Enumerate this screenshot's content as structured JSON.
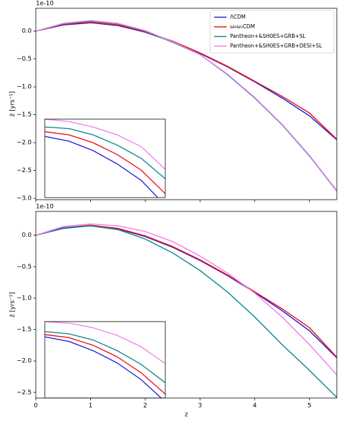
{
  "chart_data": [
    {
      "type": "line",
      "offset_label": "1e-10",
      "ylabel": "ż [yrs⁻¹]",
      "x": [
        0,
        0.5,
        1,
        1.5,
        2,
        2.5,
        3,
        3.5,
        4,
        4.5,
        5,
        5.5
      ],
      "xlim": [
        0,
        5.5
      ],
      "xticks": [
        0,
        1,
        2,
        3,
        4,
        5
      ],
      "xticklabels": false,
      "ylim": [
        -3.025,
        0.41
      ],
      "yticks": [
        {
          "value": 0,
          "label": "0.0"
        },
        {
          "value": -0.5,
          "label": "−0.5"
        },
        {
          "value": -1,
          "label": "−1.0"
        },
        {
          "value": -1.5,
          "label": "−1.5"
        },
        {
          "value": -2,
          "label": "−2.0"
        },
        {
          "value": -2.5,
          "label": "−2.5"
        },
        {
          "value": -3,
          "label": "−3.0"
        }
      ],
      "legend": "upper right",
      "series": [
        {
          "name": "ΛCDM",
          "color": "#2222dd",
          "values": [
            0,
            0.11,
            0.15,
            0.1,
            -0.02,
            -0.19,
            -0.4,
            -0.64,
            -0.91,
            -1.2,
            -1.52,
            -1.95
          ]
        },
        {
          "name": "ω₀ω₁CDM",
          "color": "#ee1111",
          "values": [
            0,
            0.12,
            0.16,
            0.11,
            -0.01,
            -0.18,
            -0.39,
            -0.63,
            -0.9,
            -1.17,
            -1.47,
            -1.94
          ]
        },
        {
          "name": "Pantheon+&SH0ES+GRB+SL",
          "color": "#138a8a",
          "values": [
            0,
            0.13,
            0.18,
            0.13,
            0,
            -0.2,
            -0.42,
            -0.78,
            -1.2,
            -1.68,
            -2.24,
            -2.87
          ]
        },
        {
          "name": "Pantheon+&SH0ES+GRB+DESI+SL",
          "color": "#ee82ee",
          "values": [
            0,
            0.14,
            0.19,
            0.14,
            0.01,
            -0.19,
            -0.42,
            -0.77,
            -1.19,
            -1.67,
            -2.23,
            -2.86
          ]
        }
      ],
      "inset": {
        "x": [
          0,
          0.2,
          0.4,
          0.6,
          0.8,
          1
        ],
        "xlim": [
          0,
          1
        ],
        "ylim": [
          0,
          1
        ],
        "series": [
          {
            "color": "#2222dd",
            "values": [
              0.78,
              0.72,
              0.6,
              0.43,
              0.22,
              -0.1
            ]
          },
          {
            "color": "#ee1111",
            "values": [
              0.84,
              0.8,
              0.7,
              0.55,
              0.35,
              0.05
            ]
          },
          {
            "color": "#138a8a",
            "values": [
              0.9,
              0.88,
              0.8,
              0.67,
              0.5,
              0.24
            ]
          },
          {
            "color": "#ee82ee",
            "values": [
              1.0,
              0.97,
              0.9,
              0.8,
              0.65,
              0.36
            ]
          }
        ]
      }
    },
    {
      "type": "line",
      "offset_label": "1e-10",
      "ylabel": "ż [yrs⁻¹]",
      "xlabel": "z",
      "x": [
        0,
        0.5,
        1,
        1.5,
        2,
        2.5,
        3,
        3.5,
        4,
        4.5,
        5,
        5.5
      ],
      "xlim": [
        0,
        5.5
      ],
      "xticks": [
        0,
        1,
        2,
        3,
        4,
        5
      ],
      "ylim": [
        -2.59,
        0.38
      ],
      "yticks": [
        {
          "value": 0,
          "label": "0.0"
        },
        {
          "value": -0.5,
          "label": "−0.5"
        },
        {
          "value": -1,
          "label": "−1.0"
        },
        {
          "value": -1.5,
          "label": "−1.5"
        },
        {
          "value": -2,
          "label": "−2.0"
        },
        {
          "value": -2.5,
          "label": "−2.5"
        }
      ],
      "series": [
        {
          "color": "#2222dd",
          "values": [
            0,
            0.11,
            0.15,
            0.1,
            -0.02,
            -0.19,
            -0.4,
            -0.64,
            -0.91,
            -1.2,
            -1.52,
            -1.95
          ]
        },
        {
          "color": "#ee1111",
          "values": [
            0,
            0.12,
            0.16,
            0.11,
            -0.01,
            -0.18,
            -0.39,
            -0.63,
            -0.9,
            -1.17,
            -1.47,
            -1.94
          ]
        },
        {
          "color": "#138a8a",
          "values": [
            0,
            0.12,
            0.15,
            0.09,
            -0.06,
            -0.28,
            -0.56,
            -0.9,
            -1.3,
            -1.74,
            -2.15,
            -2.58
          ]
        },
        {
          "color": "#ee82ee",
          "values": [
            0,
            0.14,
            0.18,
            0.15,
            0.06,
            -0.1,
            -0.33,
            -0.6,
            -0.92,
            -1.3,
            -1.74,
            -2.22
          ]
        }
      ],
      "inset": {
        "x": [
          0,
          0.2,
          0.4,
          0.6,
          0.8,
          1
        ],
        "xlim": [
          0,
          1
        ],
        "ylim": [
          0,
          1
        ],
        "series": [
          {
            "color": "#2222dd",
            "values": [
              0.8,
              0.74,
              0.62,
              0.46,
              0.24,
              -0.05
            ]
          },
          {
            "color": "#ee1111",
            "values": [
              0.83,
              0.79,
              0.69,
              0.54,
              0.33,
              0.05
            ]
          },
          {
            "color": "#138a8a",
            "values": [
              0.87,
              0.84,
              0.76,
              0.62,
              0.44,
              0.2
            ]
          },
          {
            "color": "#ee82ee",
            "values": [
              1.0,
              0.98,
              0.92,
              0.82,
              0.67,
              0.45
            ]
          }
        ]
      }
    }
  ]
}
